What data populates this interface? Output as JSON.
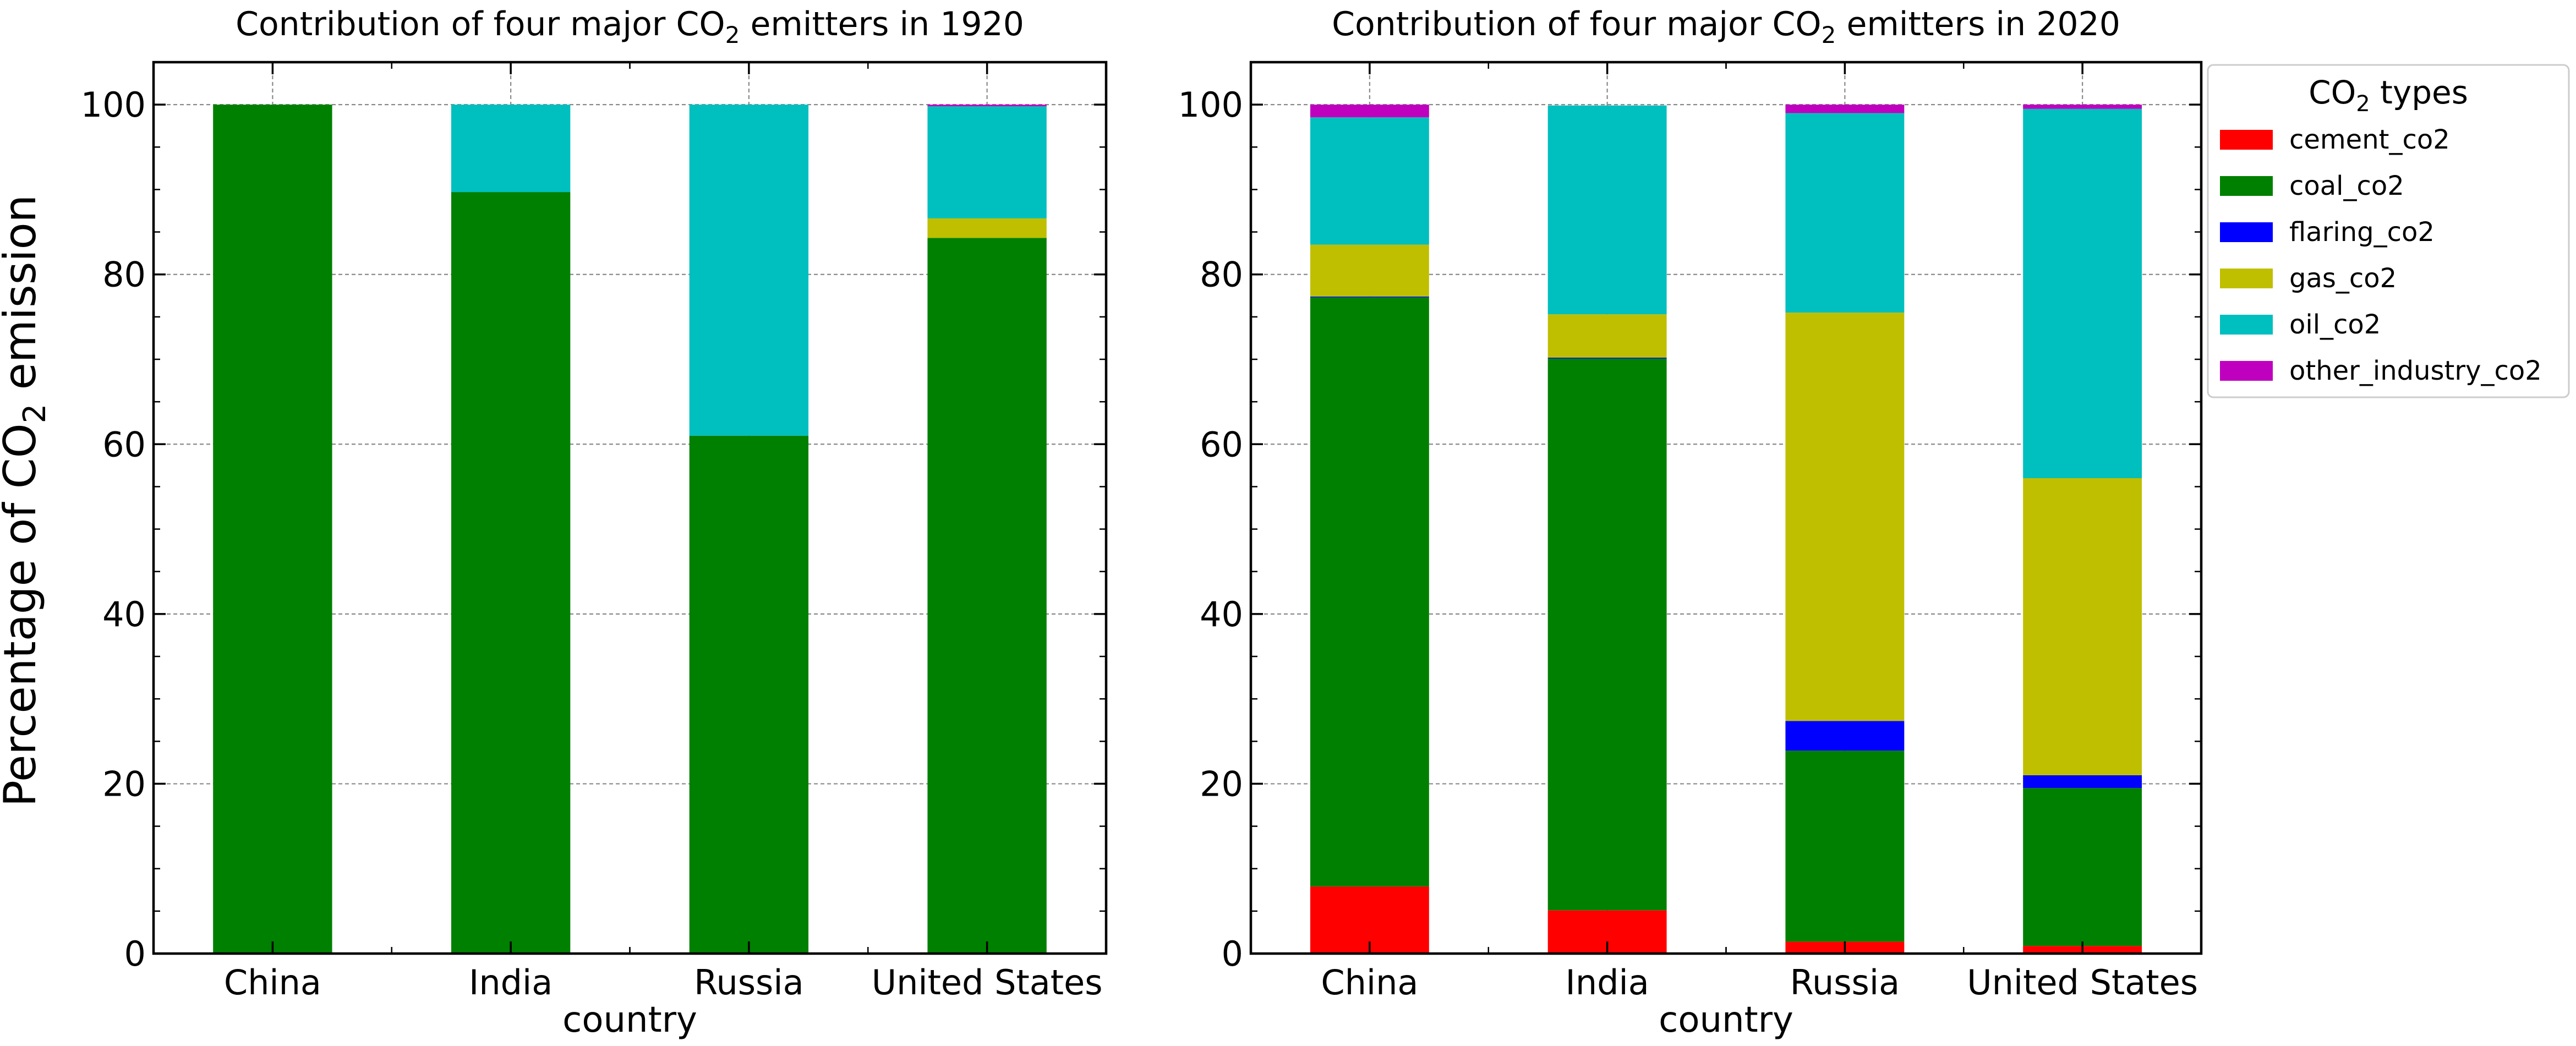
{
  "chart_data": [
    {
      "type": "bar",
      "stacked": true,
      "title": "Contribution of four major CO2 emitters in 1920",
      "title_year": "1920",
      "xlabel": "country",
      "ylabel": "Percentage of CO2 emission",
      "ylim": [
        0,
        105
      ],
      "yticks": [
        0,
        20,
        40,
        60,
        80,
        100
      ],
      "grid": true,
      "legend": "none",
      "categories": [
        "China",
        "India",
        "Russia",
        "United States"
      ],
      "series": [
        {
          "name": "cement_co2",
          "color": "#ff0000",
          "values": [
            0,
            0,
            0,
            0
          ]
        },
        {
          "name": "coal_co2",
          "color": "#008000",
          "values": [
            100,
            89.7,
            61,
            84.3
          ]
        },
        {
          "name": "flaring_co2",
          "color": "#0000ff",
          "values": [
            0,
            0,
            0,
            0
          ]
        },
        {
          "name": "gas_co2",
          "color": "#bfbf00",
          "values": [
            0,
            0,
            0,
            2.3
          ]
        },
        {
          "name": "oil_co2",
          "color": "#00bfbf",
          "values": [
            0,
            10.3,
            39,
            13.2
          ]
        },
        {
          "name": "other_industry_co2",
          "color": "#bf00bf",
          "values": [
            0,
            0,
            0,
            0.2
          ]
        }
      ]
    },
    {
      "type": "bar",
      "stacked": true,
      "title": "Contribution of four major CO2 emitters in 2020",
      "title_year": "2020",
      "xlabel": "country",
      "ylabel": "",
      "ylim": [
        0,
        105
      ],
      "yticks": [
        0,
        20,
        40,
        60,
        80,
        100
      ],
      "grid": true,
      "legend": "outside-upper-right",
      "legend_title": "CO2 types",
      "categories": [
        "China",
        "India",
        "Russia",
        "United States"
      ],
      "series": [
        {
          "name": "cement_co2",
          "color": "#ff0000",
          "values": [
            7.9,
            5.1,
            1.4,
            0.9
          ]
        },
        {
          "name": "coal_co2",
          "color": "#008000",
          "values": [
            69.4,
            65.0,
            22.5,
            18.6
          ]
        },
        {
          "name": "flaring_co2",
          "color": "#0000ff",
          "values": [
            0.1,
            0.1,
            3.5,
            1.5
          ]
        },
        {
          "name": "gas_co2",
          "color": "#bfbf00",
          "values": [
            6.1,
            5.1,
            48.1,
            35.0
          ]
        },
        {
          "name": "oil_co2",
          "color": "#00bfbf",
          "values": [
            15.0,
            24.6,
            23.5,
            43.5
          ]
        },
        {
          "name": "other_industry_co2",
          "color": "#bf00bf",
          "values": [
            1.5,
            0,
            1.0,
            0.5
          ]
        }
      ]
    }
  ],
  "legend_items": [
    "cement_co2",
    "coal_co2",
    "flaring_co2",
    "gas_co2",
    "oil_co2",
    "other_industry_co2"
  ]
}
